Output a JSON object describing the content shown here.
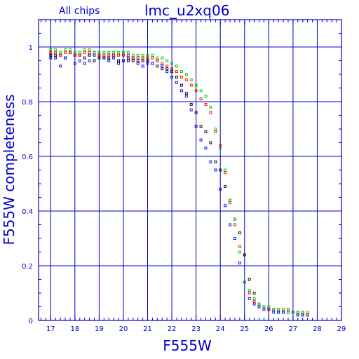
{
  "chart_data": {
    "type": "scatter",
    "title": "lmc_u2xq06",
    "subtitle": "All chips",
    "xlabel": "F555W",
    "ylabel": "F555W completeness",
    "xlim": [
      16.5,
      29
    ],
    "ylim": [
      0,
      1.1
    ],
    "x_ticks": [
      17,
      18,
      19,
      20,
      21,
      22,
      23,
      24,
      25,
      26,
      27,
      28,
      29
    ],
    "y_ticks": [
      0,
      0.2,
      0.4,
      0.6,
      0.8,
      1
    ],
    "grid": true,
    "series": [
      {
        "color": "#000000",
        "points": [
          [
            17.0,
            0.97
          ],
          [
            17.2,
            0.97
          ],
          [
            17.4,
            0.97
          ],
          [
            17.6,
            0.96
          ],
          [
            17.8,
            0.98
          ],
          [
            18.0,
            0.97
          ],
          [
            18.2,
            0.97
          ],
          [
            18.4,
            0.96
          ],
          [
            18.6,
            0.97
          ],
          [
            18.8,
            0.95
          ],
          [
            19.0,
            0.96
          ],
          [
            19.2,
            0.96
          ],
          [
            19.4,
            0.96
          ],
          [
            19.6,
            0.97
          ],
          [
            19.8,
            0.95
          ],
          [
            20.0,
            0.95
          ],
          [
            20.2,
            0.95
          ],
          [
            20.4,
            0.95
          ],
          [
            20.6,
            0.94
          ],
          [
            20.8,
            0.95
          ],
          [
            21.0,
            0.95
          ],
          [
            21.2,
            0.94
          ],
          [
            21.4,
            0.93
          ],
          [
            21.6,
            0.92
          ],
          [
            21.8,
            0.92
          ],
          [
            22.0,
            0.91
          ],
          [
            22.2,
            0.89
          ],
          [
            22.4,
            0.86
          ],
          [
            22.6,
            0.83
          ],
          [
            22.8,
            0.79
          ],
          [
            23.0,
            0.76
          ],
          [
            23.2,
            0.71
          ],
          [
            23.4,
            0.69
          ],
          [
            23.6,
            0.65
          ],
          [
            23.8,
            0.58
          ],
          [
            24.0,
            0.55
          ],
          [
            24.2,
            0.49
          ],
          [
            24.4,
            0.44
          ],
          [
            24.6,
            0.37
          ],
          [
            24.8,
            0.32
          ],
          [
            25.0,
            0.24
          ],
          [
            25.2,
            0.15
          ],
          [
            25.4,
            0.1
          ],
          [
            25.6,
            0.06
          ],
          [
            25.8,
            0.05
          ],
          [
            26.0,
            0.04
          ],
          [
            26.2,
            0.04
          ],
          [
            26.4,
            0.03
          ],
          [
            26.6,
            0.03
          ],
          [
            26.8,
            0.03
          ],
          [
            27.0,
            0.03
          ],
          [
            27.2,
            0.02
          ],
          [
            27.4,
            0.02
          ],
          [
            27.6,
            0.02
          ]
        ]
      },
      {
        "color": "#0000ff",
        "points": [
          [
            17.0,
            0.96
          ],
          [
            17.2,
            0.96
          ],
          [
            17.4,
            0.93
          ],
          [
            17.6,
            0.96
          ],
          [
            17.8,
            0.98
          ],
          [
            18.0,
            0.94
          ],
          [
            18.2,
            0.95
          ],
          [
            18.4,
            0.94
          ],
          [
            18.6,
            0.95
          ],
          [
            18.8,
            0.97
          ],
          [
            19.0,
            0.97
          ],
          [
            19.2,
            0.96
          ],
          [
            19.4,
            0.95
          ],
          [
            19.6,
            0.96
          ],
          [
            19.8,
            0.94
          ],
          [
            20.0,
            0.95
          ],
          [
            20.2,
            0.96
          ],
          [
            20.4,
            0.96
          ],
          [
            20.6,
            0.95
          ],
          [
            20.8,
            0.93
          ],
          [
            21.0,
            0.94
          ],
          [
            21.2,
            0.94
          ],
          [
            21.4,
            0.95
          ],
          [
            21.6,
            0.93
          ],
          [
            21.8,
            0.91
          ],
          [
            22.0,
            0.89
          ],
          [
            22.2,
            0.87
          ],
          [
            22.4,
            0.84
          ],
          [
            22.6,
            0.82
          ],
          [
            22.8,
            0.77
          ],
          [
            23.0,
            0.71
          ],
          [
            23.2,
            0.66
          ],
          [
            23.4,
            0.63
          ],
          [
            23.6,
            0.58
          ],
          [
            23.8,
            0.55
          ],
          [
            24.0,
            0.48
          ],
          [
            24.2,
            0.42
          ],
          [
            24.4,
            0.35
          ],
          [
            24.6,
            0.3
          ],
          [
            24.8,
            0.21
          ],
          [
            25.0,
            0.14
          ],
          [
            25.2,
            0.08
          ],
          [
            25.4,
            0.06
          ],
          [
            25.6,
            0.05
          ],
          [
            25.8,
            0.04
          ],
          [
            26.0,
            0.04
          ],
          [
            26.2,
            0.03
          ],
          [
            26.4,
            0.03
          ],
          [
            26.6,
            0.03
          ],
          [
            26.8,
            0.03
          ],
          [
            27.0,
            0.03
          ],
          [
            27.2,
            0.02
          ],
          [
            27.4,
            0.02
          ],
          [
            27.6,
            0.02
          ]
        ]
      },
      {
        "color": "#ff0000",
        "points": [
          [
            17.0,
            0.98
          ],
          [
            17.2,
            0.98
          ],
          [
            17.4,
            0.97
          ],
          [
            17.6,
            0.98
          ],
          [
            17.8,
            0.98
          ],
          [
            18.0,
            0.97
          ],
          [
            18.2,
            0.97
          ],
          [
            18.4,
            0.98
          ],
          [
            18.6,
            0.98
          ],
          [
            18.8,
            0.98
          ],
          [
            19.0,
            0.97
          ],
          [
            19.2,
            0.97
          ],
          [
            19.4,
            0.97
          ],
          [
            19.6,
            0.97
          ],
          [
            19.8,
            0.97
          ],
          [
            20.0,
            0.97
          ],
          [
            20.2,
            0.97
          ],
          [
            20.4,
            0.96
          ],
          [
            20.6,
            0.96
          ],
          [
            20.8,
            0.96
          ],
          [
            21.0,
            0.96
          ],
          [
            21.2,
            0.96
          ],
          [
            21.4,
            0.95
          ],
          [
            21.6,
            0.94
          ],
          [
            21.8,
            0.93
          ],
          [
            22.0,
            0.92
          ],
          [
            22.2,
            0.91
          ],
          [
            22.4,
            0.89
          ],
          [
            22.6,
            0.88
          ],
          [
            22.8,
            0.86
          ],
          [
            23.0,
            0.84
          ],
          [
            23.2,
            0.81
          ],
          [
            23.4,
            0.79
          ],
          [
            23.6,
            0.76
          ],
          [
            23.8,
            0.69
          ],
          [
            24.0,
            0.64
          ],
          [
            24.2,
            0.54
          ],
          [
            24.4,
            0.43
          ],
          [
            24.6,
            0.35
          ],
          [
            24.8,
            0.27
          ],
          [
            25.0,
            0.14
          ],
          [
            25.2,
            0.1
          ],
          [
            25.4,
            0.07
          ],
          [
            25.6,
            0.06
          ],
          [
            25.8,
            0.05
          ],
          [
            26.0,
            0.04
          ],
          [
            26.2,
            0.04
          ],
          [
            26.4,
            0.04
          ],
          [
            26.6,
            0.04
          ],
          [
            26.8,
            0.04
          ],
          [
            27.0,
            0.03
          ],
          [
            27.2,
            0.03
          ],
          [
            27.4,
            0.03
          ],
          [
            27.6,
            0.02
          ]
        ]
      },
      {
        "color": "#00cc00",
        "points": [
          [
            17.0,
            0.99
          ],
          [
            17.2,
            0.99
          ],
          [
            17.4,
            0.98
          ],
          [
            17.6,
            0.99
          ],
          [
            17.8,
            0.99
          ],
          [
            18.0,
            0.98
          ],
          [
            18.2,
            0.98
          ],
          [
            18.4,
            0.99
          ],
          [
            18.6,
            0.99
          ],
          [
            18.8,
            0.98
          ],
          [
            19.0,
            0.98
          ],
          [
            19.2,
            0.98
          ],
          [
            19.4,
            0.98
          ],
          [
            19.6,
            0.98
          ],
          [
            19.8,
            0.98
          ],
          [
            20.0,
            0.98
          ],
          [
            20.2,
            0.98
          ],
          [
            20.4,
            0.97
          ],
          [
            20.6,
            0.97
          ],
          [
            20.8,
            0.97
          ],
          [
            21.0,
            0.97
          ],
          [
            21.2,
            0.97
          ],
          [
            21.4,
            0.96
          ],
          [
            21.6,
            0.96
          ],
          [
            21.8,
            0.95
          ],
          [
            22.0,
            0.94
          ],
          [
            22.2,
            0.93
          ],
          [
            22.4,
            0.91
          ],
          [
            22.6,
            0.9
          ],
          [
            22.8,
            0.88
          ],
          [
            23.0,
            0.86
          ],
          [
            23.2,
            0.84
          ],
          [
            23.4,
            0.82
          ],
          [
            23.6,
            0.78
          ],
          [
            23.8,
            0.7
          ],
          [
            24.0,
            0.63
          ],
          [
            24.2,
            0.55
          ],
          [
            24.4,
            0.44
          ],
          [
            24.6,
            0.37
          ],
          [
            24.8,
            0.25
          ],
          [
            25.0,
            0.14
          ],
          [
            25.2,
            0.11
          ],
          [
            25.4,
            0.08
          ],
          [
            25.6,
            0.06
          ],
          [
            25.8,
            0.05
          ],
          [
            26.0,
            0.05
          ],
          [
            26.2,
            0.04
          ],
          [
            26.4,
            0.04
          ],
          [
            26.6,
            0.04
          ],
          [
            26.8,
            0.03
          ],
          [
            27.0,
            0.03
          ],
          [
            27.2,
            0.03
          ],
          [
            27.4,
            0.03
          ],
          [
            27.6,
            0.03
          ]
        ]
      }
    ]
  }
}
